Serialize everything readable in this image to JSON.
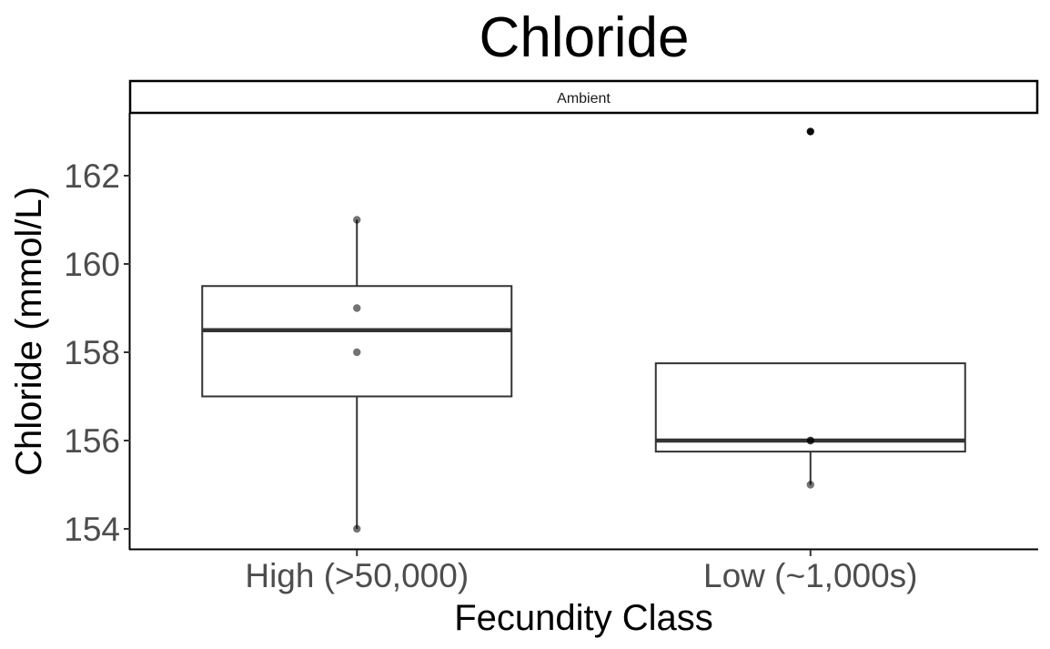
{
  "chart_data": {
    "type": "box",
    "title": "Chloride",
    "facet": "Ambient",
    "xlabel": "Fecundity Class",
    "ylabel": "Chloride (mmol/L)",
    "ylim": [
      153.8,
      163.4
    ],
    "yticks": [
      154,
      156,
      158,
      160,
      162
    ],
    "categories": [
      "High (>50,000)",
      "Low (~1,000s)"
    ],
    "boxes": [
      {
        "category": "High (>50,000)",
        "whisker_low": 154,
        "q1": 157,
        "median": 158.5,
        "q3": 159.5,
        "whisker_high": 161,
        "outliers": []
      },
      {
        "category": "Low (~1,000s)",
        "whisker_low": 155,
        "q1": 155.75,
        "median": 156,
        "q3": 157.75,
        "whisker_high": 157.75,
        "outliers": [
          163
        ]
      }
    ],
    "points": [
      {
        "category": "High (>50,000)",
        "values": [
          161,
          159,
          158,
          154
        ]
      },
      {
        "category": "Low (~1,000s)",
        "values": [
          163,
          156,
          156,
          155
        ]
      }
    ],
    "grid": false,
    "legend": "none"
  }
}
